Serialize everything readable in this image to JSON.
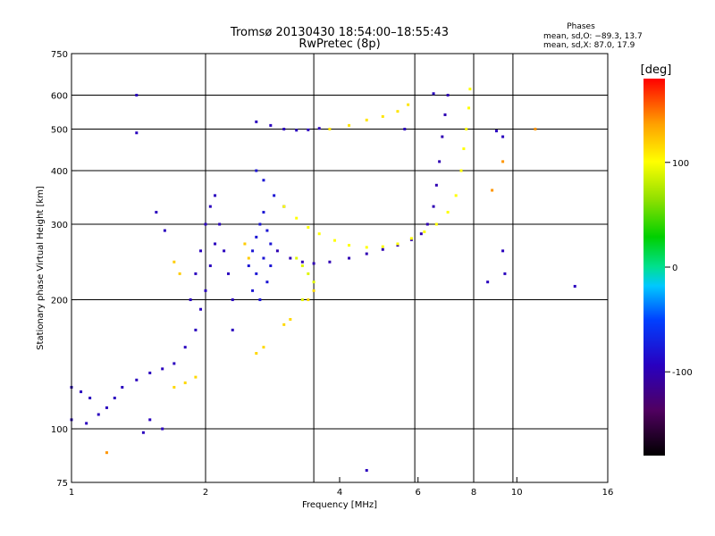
{
  "chart_data": {
    "type": "scatter",
    "title": "Tromsø 20130430 18:54:00–18:55:43",
    "subtitle": "RwPretec (8p)",
    "info": {
      "heading": "Phases",
      "line_o": "mean, sd,O: −89.3, 13.7",
      "line_x": "mean, sd,X:  87.0, 17.9"
    },
    "xlabel": "Frequency [MHz]",
    "ylabel": "Stationary phase Virtual Height [km]",
    "x_scale": "log",
    "y_scale": "log",
    "xlim": [
      1,
      16
    ],
    "ylim": [
      75,
      750
    ],
    "x_ticks": [
      {
        "value": 1,
        "label": "1"
      },
      {
        "value": 2,
        "label": "2"
      },
      {
        "value": 4,
        "label": "4"
      },
      {
        "value": 6,
        "label": "6"
      },
      {
        "value": 8,
        "label": "8"
      },
      {
        "value": 10,
        "label": "10"
      },
      {
        "value": 16,
        "label": "16"
      }
    ],
    "x_grid": [
      2,
      3.5,
      5.9,
      8,
      9.8
    ],
    "y_ticks": [
      {
        "value": 75,
        "label": "75"
      },
      {
        "value": 100,
        "label": "100"
      },
      {
        "value": 200,
        "label": "200"
      },
      {
        "value": 300,
        "label": "300"
      },
      {
        "value": 400,
        "label": "400"
      },
      {
        "value": 500,
        "label": "500"
      },
      {
        "value": 600,
        "label": "600"
      },
      {
        "value": 750,
        "label": "750"
      }
    ],
    "y_grid": [
      100,
      200,
      300,
      400,
      500,
      600
    ],
    "grid": true,
    "colorbar": {
      "label": "[deg]",
      "min": -180,
      "max": 180,
      "ticks": [
        {
          "value": 100,
          "label": "100"
        },
        {
          "value": 0,
          "label": "0"
        },
        {
          "value": -100,
          "label": "-100"
        }
      ],
      "placement": "right"
    },
    "clusters": [
      {
        "name": "o-trace-low",
        "phase": -95,
        "points": [
          [
            1.0,
            125
          ],
          [
            1.05,
            122
          ],
          [
            1.1,
            118
          ],
          [
            1.0,
            105
          ],
          [
            1.08,
            103
          ],
          [
            1.15,
            108
          ],
          [
            1.2,
            112
          ],
          [
            1.25,
            118
          ],
          [
            1.3,
            125
          ],
          [
            1.4,
            130
          ],
          [
            1.5,
            135
          ],
          [
            1.6,
            138
          ],
          [
            1.7,
            142
          ],
          [
            1.8,
            155
          ],
          [
            1.9,
            170
          ],
          [
            1.95,
            190
          ],
          [
            2.0,
            210
          ],
          [
            2.05,
            240
          ],
          [
            2.1,
            270
          ],
          [
            2.15,
            300
          ],
          [
            2.2,
            260
          ],
          [
            2.25,
            230
          ],
          [
            2.3,
            200
          ],
          [
            2.3,
            170
          ],
          [
            1.85,
            200
          ],
          [
            1.9,
            230
          ],
          [
            1.95,
            260
          ],
          [
            2.0,
            300
          ],
          [
            2.05,
            330
          ],
          [
            2.1,
            350
          ]
        ]
      },
      {
        "name": "e-f1-region",
        "phase": -80,
        "points": [
          [
            2.5,
            240
          ],
          [
            2.55,
            260
          ],
          [
            2.6,
            280
          ],
          [
            2.65,
            300
          ],
          [
            2.7,
            320
          ],
          [
            2.75,
            290
          ],
          [
            2.8,
            270
          ],
          [
            2.7,
            250
          ],
          [
            2.6,
            230
          ],
          [
            2.55,
            210
          ],
          [
            2.65,
            200
          ],
          [
            2.75,
            220
          ],
          [
            2.8,
            240
          ],
          [
            2.6,
            400
          ],
          [
            2.7,
            380
          ],
          [
            2.85,
            350
          ],
          [
            3.0,
            330
          ]
        ]
      },
      {
        "name": "f2-o-trace",
        "phase": -100,
        "points": [
          [
            2.9,
            260
          ],
          [
            3.1,
            250
          ],
          [
            3.3,
            245
          ],
          [
            3.5,
            243
          ],
          [
            3.8,
            245
          ],
          [
            4.2,
            250
          ],
          [
            4.6,
            256
          ],
          [
            5.0,
            262
          ],
          [
            5.4,
            268
          ],
          [
            5.8,
            276
          ],
          [
            6.1,
            285
          ],
          [
            6.3,
            300
          ],
          [
            6.5,
            330
          ],
          [
            6.6,
            370
          ],
          [
            6.7,
            420
          ],
          [
            6.8,
            480
          ],
          [
            6.9,
            540
          ],
          [
            7.0,
            600
          ]
        ]
      },
      {
        "name": "upper-f-o",
        "phase": -95,
        "points": [
          [
            2.6,
            520
          ],
          [
            2.8,
            510
          ],
          [
            3.0,
            500
          ],
          [
            3.2,
            497
          ],
          [
            3.4,
            498
          ],
          [
            3.6,
            502
          ]
        ]
      },
      {
        "name": "x-trace",
        "phase": 100,
        "points": [
          [
            3.0,
            330
          ],
          [
            3.2,
            310
          ],
          [
            3.4,
            295
          ],
          [
            3.6,
            285
          ],
          [
            3.9,
            275
          ],
          [
            4.2,
            268
          ],
          [
            4.6,
            265
          ],
          [
            5.0,
            266
          ],
          [
            5.4,
            270
          ],
          [
            5.8,
            278
          ],
          [
            6.2,
            288
          ],
          [
            6.6,
            300
          ],
          [
            7.0,
            320
          ],
          [
            7.3,
            350
          ],
          [
            7.5,
            400
          ],
          [
            7.6,
            450
          ],
          [
            7.7,
            500
          ],
          [
            7.8,
            560
          ],
          [
            7.85,
            620
          ]
        ]
      },
      {
        "name": "x-upper",
        "phase": 110,
        "points": [
          [
            3.8,
            500
          ],
          [
            4.2,
            510
          ],
          [
            4.6,
            525
          ],
          [
            5.0,
            535
          ],
          [
            5.4,
            550
          ],
          [
            5.7,
            570
          ]
        ]
      },
      {
        "name": "x-low",
        "phase": 115,
        "points": [
          [
            1.7,
            125
          ],
          [
            1.8,
            128
          ],
          [
            1.9,
            132
          ],
          [
            2.6,
            150
          ],
          [
            2.7,
            155
          ],
          [
            3.0,
            175
          ],
          [
            3.1,
            180
          ],
          [
            3.4,
            200
          ],
          [
            3.5,
            210
          ]
        ]
      },
      {
        "name": "x-f1",
        "phase": 90,
        "points": [
          [
            3.2,
            250
          ],
          [
            3.3,
            240
          ],
          [
            3.4,
            230
          ],
          [
            3.5,
            220
          ],
          [
            3.3,
            200
          ]
        ]
      },
      {
        "name": "scatter-high",
        "phase": 120,
        "points": [
          [
            2.45,
            270
          ],
          [
            2.5,
            250
          ],
          [
            1.7,
            245
          ],
          [
            1.75,
            230
          ]
        ]
      },
      {
        "name": "outliers",
        "phase": -95,
        "points": [
          [
            1.4,
            600
          ],
          [
            1.4,
            490
          ],
          [
            1.55,
            320
          ],
          [
            1.62,
            290
          ],
          [
            8.6,
            220
          ],
          [
            9.0,
            495
          ],
          [
            9.3,
            480
          ],
          [
            9.3,
            260
          ],
          [
            9.4,
            230
          ],
          [
            13.5,
            215
          ],
          [
            6.5,
            605
          ],
          [
            5.6,
            500
          ],
          [
            4.6,
            80
          ],
          [
            1.45,
            98
          ],
          [
            1.6,
            100
          ],
          [
            1.5,
            105
          ]
        ]
      },
      {
        "name": "outliers-x",
        "phase": 140,
        "points": [
          [
            8.8,
            360
          ],
          [
            9.3,
            420
          ],
          [
            11.0,
            500
          ],
          [
            1.2,
            88
          ]
        ]
      }
    ]
  }
}
